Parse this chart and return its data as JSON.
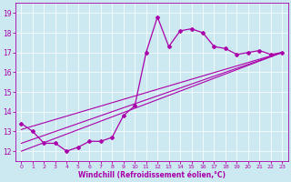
{
  "xlabel": "Windchill (Refroidissement éolien,°C)",
  "background_color": "#cce8f0",
  "line_color": "#aa00aa",
  "xlim": [
    -0.5,
    23.5
  ],
  "ylim": [
    11.5,
    19.5
  ],
  "xticks": [
    0,
    1,
    2,
    3,
    4,
    5,
    6,
    7,
    8,
    9,
    10,
    11,
    12,
    13,
    14,
    15,
    16,
    17,
    18,
    19,
    20,
    21,
    22,
    23
  ],
  "yticks": [
    12,
    13,
    14,
    15,
    16,
    17,
    18,
    19
  ],
  "main_x": [
    0,
    1,
    2,
    3,
    4,
    5,
    6,
    7,
    8,
    9,
    10,
    11,
    12,
    13,
    14,
    15,
    16,
    17,
    18,
    19,
    20,
    21,
    22,
    23
  ],
  "main_y": [
    13.4,
    13.0,
    12.4,
    12.4,
    12.0,
    12.2,
    12.5,
    12.5,
    12.7,
    13.8,
    14.3,
    17.0,
    18.8,
    17.3,
    18.1,
    18.2,
    18.0,
    17.3,
    17.2,
    16.9,
    17.0,
    17.1,
    16.9,
    17.0
  ],
  "trend1_x": [
    0,
    23
  ],
  "trend1_y": [
    13.1,
    17.0
  ],
  "trend2_x": [
    0,
    23
  ],
  "trend2_y": [
    12.4,
    17.0
  ],
  "trend3_x": [
    0,
    23
  ],
  "trend3_y": [
    12.0,
    17.0
  ]
}
